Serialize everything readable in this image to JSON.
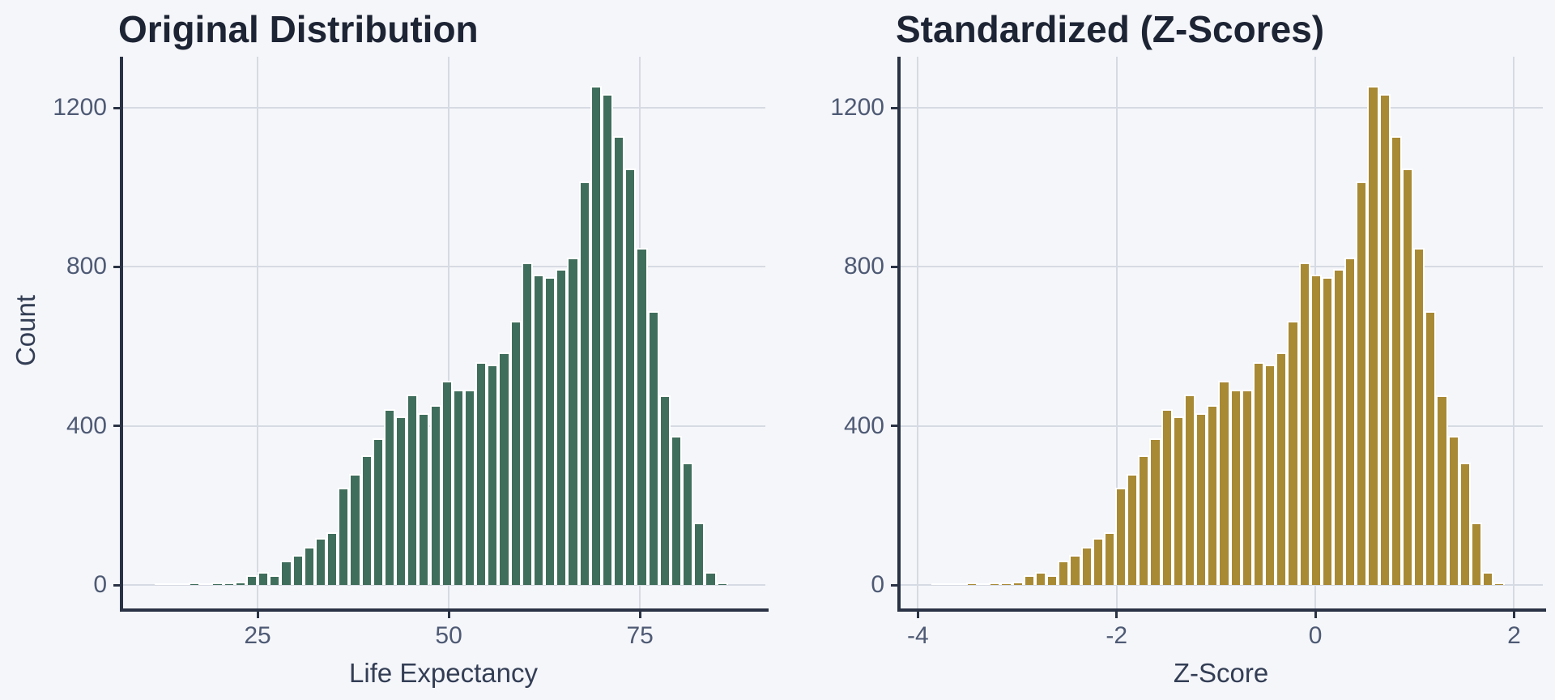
{
  "style": {
    "background": "#F5F6FA",
    "grid_color": "#D6DAE3",
    "spine_color": "#2A3345",
    "tick_label_color": "#4E5A74",
    "axis_label_color": "#333E55",
    "title_color": "#1D2434",
    "bar_edge_color": "#FFFFFF"
  },
  "chart_data": [
    {
      "type": "bar",
      "variant": "histogram",
      "title": "Original Distribution",
      "xlabel": "Life Expectancy",
      "ylabel": "Count",
      "bar_color": "#406E5C",
      "bar_edge_color": "#FFFFFF",
      "x_ticks": [
        25,
        50,
        75
      ],
      "y_ticks": [
        0,
        400,
        800,
        1200
      ],
      "xlim": [
        7.2,
        91.4
      ],
      "ylim": [
        0,
        1330
      ],
      "grid": true,
      "legend": false,
      "bin_start": 11.5,
      "bin_width": 1.5,
      "counts": [
        1,
        1,
        1,
        2,
        1,
        2,
        3,
        5,
        21,
        28,
        21,
        58,
        72,
        91,
        114,
        129,
        241,
        276,
        322,
        364,
        439,
        420,
        474,
        427,
        449,
        509,
        487,
        487,
        557,
        551,
        580,
        660,
        807,
        776,
        771,
        791,
        819,
        1011,
        1250,
        1230,
        1124,
        1044,
        844,
        684,
        473,
        371,
        304,
        153,
        29,
        2
      ]
    },
    {
      "type": "bar",
      "variant": "histogram",
      "title": "Standardized (Z-Scores)",
      "xlabel": "Z-Score",
      "ylabel": "",
      "bar_color": "#A88934",
      "bar_edge_color": "#FFFFFF",
      "x_ticks": [
        -4,
        -2,
        0,
        2
      ],
      "y_ticks": [
        0,
        400,
        800,
        1200
      ],
      "xlim": [
        -4.19,
        2.29
      ],
      "ylim": [
        0,
        1330
      ],
      "grid": true,
      "legend": false,
      "bin_start": -3.86,
      "bin_width": 0.1154,
      "counts": [
        1,
        1,
        1,
        2,
        1,
        2,
        3,
        5,
        21,
        28,
        21,
        58,
        72,
        91,
        114,
        129,
        241,
        276,
        322,
        364,
        439,
        420,
        474,
        427,
        449,
        509,
        487,
        487,
        557,
        551,
        580,
        660,
        807,
        776,
        771,
        791,
        819,
        1011,
        1250,
        1230,
        1124,
        1044,
        844,
        684,
        473,
        371,
        304,
        153,
        29,
        2
      ]
    }
  ]
}
